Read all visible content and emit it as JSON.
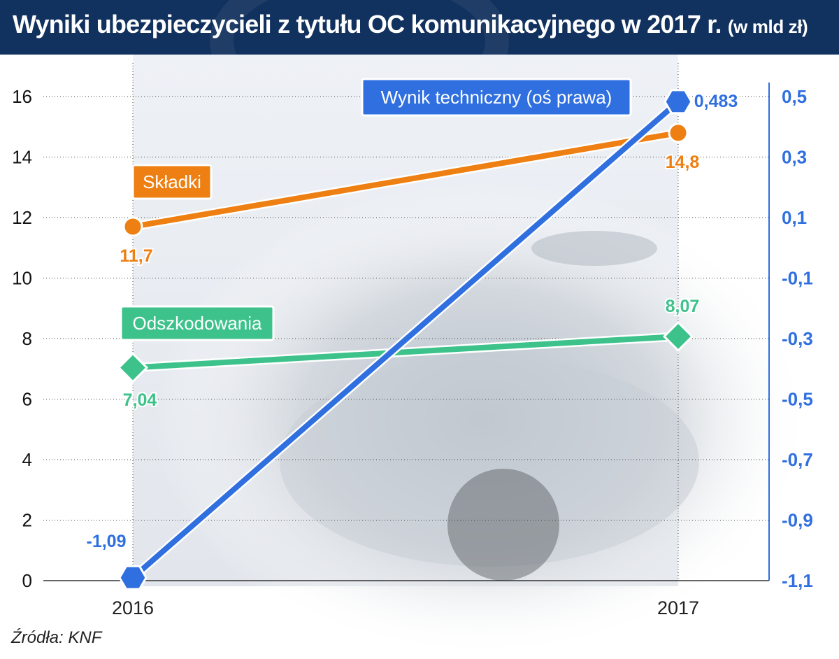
{
  "title": "Wyniki ubezpieczycieli z tytułu OC komunikacyjnego w 2017 r.",
  "title_unit": "(w mld zł)",
  "source": "Źródła: KNF",
  "colors": {
    "title_bg": "#11315e",
    "orange": "#ee7f12",
    "green": "#3cc28a",
    "blue": "#2f6fe0",
    "right_axis_text": "#2f6fe0"
  },
  "chart_data": {
    "type": "line",
    "x": [
      "2016",
      "2017"
    ],
    "left_axis": {
      "min": 0,
      "max": 16,
      "ticks": [
        "0",
        "2",
        "4",
        "6",
        "8",
        "10",
        "12",
        "14",
        "16"
      ]
    },
    "right_axis": {
      "min": -1.1,
      "max": 0.5,
      "ticks": [
        "-1,1",
        "-0,9",
        "-0,7",
        "-0,5",
        "-0,3",
        "-0,1",
        "0,1",
        "0,3",
        "0,5"
      ]
    },
    "grid": true,
    "series": [
      {
        "name": "Składki",
        "axis": "left",
        "values": [
          11.7,
          14.8
        ],
        "labels": [
          "11,7",
          "14,8"
        ],
        "marker": "circle"
      },
      {
        "name": "Odszkodowania",
        "axis": "left",
        "values": [
          7.04,
          8.07
        ],
        "labels": [
          "7,04",
          "8,07"
        ],
        "marker": "diamond"
      },
      {
        "name": "Wynik techniczny (oś prawa)",
        "axis": "right",
        "values": [
          -1.09,
          0.483
        ],
        "labels": [
          "-1,09",
          "0,483"
        ],
        "marker": "hexagon"
      }
    ]
  }
}
